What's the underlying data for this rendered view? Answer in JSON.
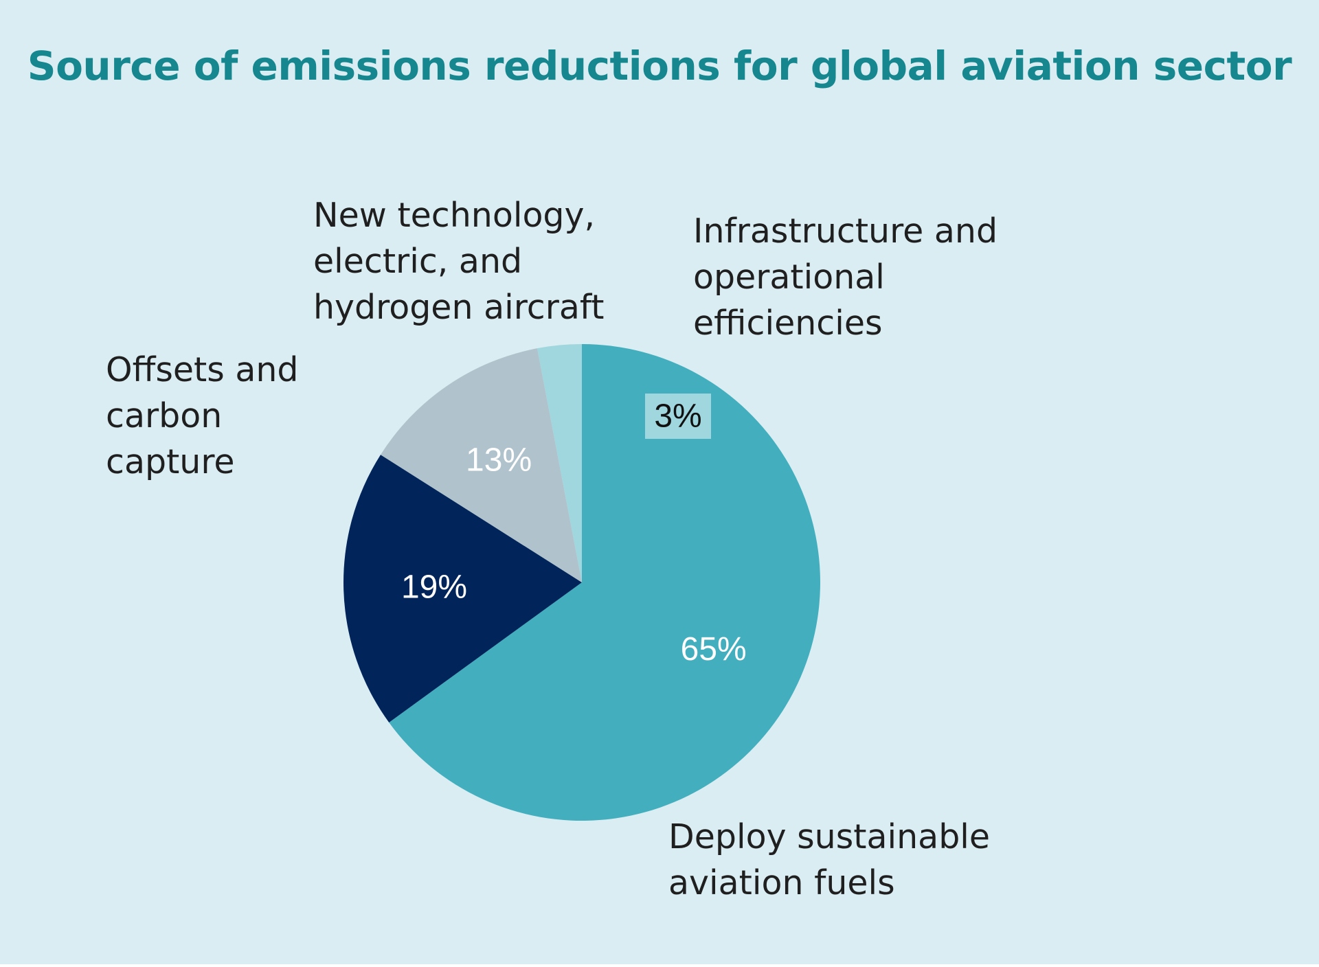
{
  "chart_data": {
    "type": "pie",
    "title": "Source of emissions reductions for global aviation sector",
    "slices": [
      {
        "label": "Deploy sustainable\naviation fuels",
        "value": 65,
        "display": "65%",
        "color": "#43afbe",
        "text_color": "#ffffff"
      },
      {
        "label": "Offsets and\ncarbon\ncapture",
        "value": 19,
        "display": "19%",
        "color": "#01245a",
        "text_color": "#ffffff"
      },
      {
        "label": "New technology,\nelectric, and\nhydrogen aircraft",
        "value": 13,
        "display": "13%",
        "color": "#b0c2cc",
        "text_color": "#ffffff"
      },
      {
        "label": "Infrastructure and\noperational\nefficiencies",
        "value": 3,
        "display": "3%",
        "color": "#a0d6dd",
        "text_color": "#111111",
        "label_box": "#a0d6dd"
      }
    ],
    "start": "12 o'clock",
    "direction": "clockwise"
  },
  "colors": {
    "background": "#daedf2",
    "title": "#16878f"
  }
}
